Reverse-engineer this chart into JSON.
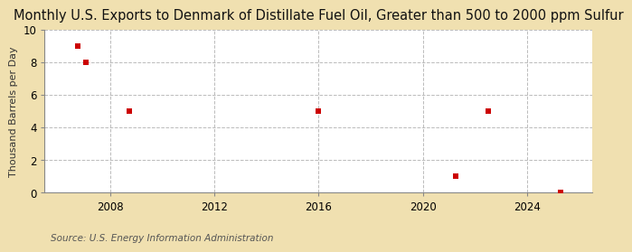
{
  "title": "Monthly U.S. Exports to Denmark of Distillate Fuel Oil, Greater than 500 to 2000 ppm Sulfur",
  "ylabel": "Thousand Barrels per Day",
  "source": "Source: U.S. Energy Information Administration",
  "background_color": "#f0e0b0",
  "plot_background": "#ffffff",
  "data_x": [
    2006.75,
    2007.08,
    2008.75,
    2016.0,
    2021.25,
    2022.5,
    2025.3
  ],
  "data_y": [
    9,
    8,
    5,
    5,
    1,
    5,
    0
  ],
  "xlim": [
    2005.5,
    2026.5
  ],
  "ylim": [
    0,
    10
  ],
  "xticks": [
    2008,
    2012,
    2016,
    2020,
    2024
  ],
  "yticks": [
    0,
    2,
    4,
    6,
    8,
    10
  ],
  "marker_color": "#cc0000",
  "marker_size": 4,
  "title_fontsize": 10.5,
  "axis_fontsize": 8,
  "tick_fontsize": 8.5,
  "source_fontsize": 7.5,
  "grid_color": "#bbbbbb",
  "spine_color": "#888888"
}
